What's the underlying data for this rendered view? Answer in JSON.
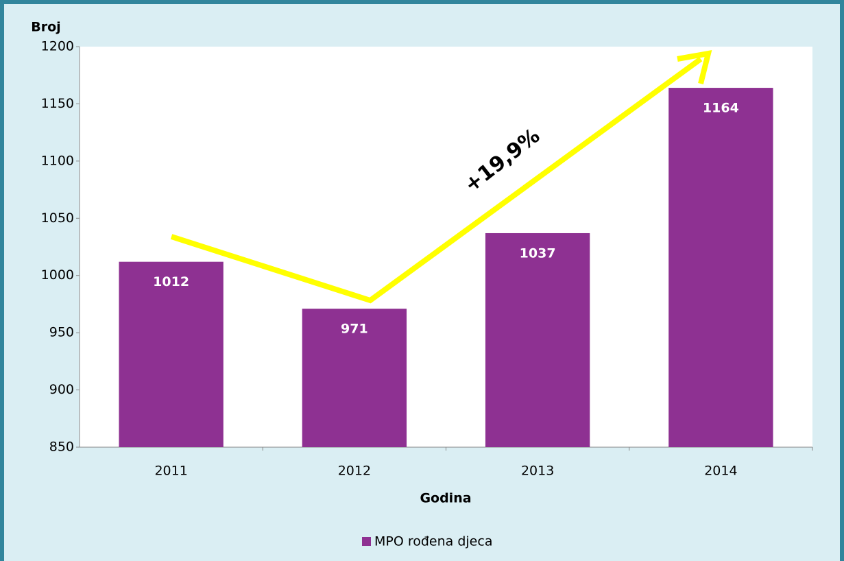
{
  "chart_data": {
    "type": "bar",
    "y_label": "Broj",
    "x_label": "Godina",
    "categories": [
      "2011",
      "2012",
      "2013",
      "2014"
    ],
    "series": [
      {
        "name": "MPO rođena djeca",
        "color": "#8e3192",
        "values": [
          1012,
          971,
          1037,
          1164
        ]
      }
    ],
    "annotation": "+19,9%",
    "ylim": [
      850,
      1200
    ],
    "yticks": [
      850,
      900,
      950,
      1000,
      1050,
      1100,
      1150,
      1200
    ],
    "grid": false,
    "legend": "bottom"
  }
}
